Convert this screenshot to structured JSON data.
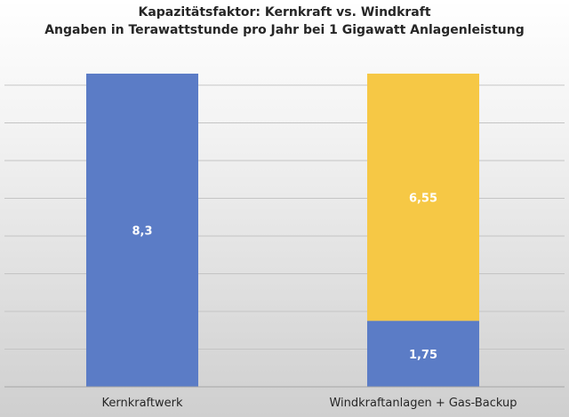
{
  "chart_data": {
    "type": "bar",
    "stacked": true,
    "title": "Kapazitätsfaktor: Kernkraft vs. Windkraft",
    "subtitle": "Angaben in Terawattstunde pro Jahr bei 1 Gigawatt Anlagenleistung",
    "categories": [
      "Kernkraftwerk",
      "Windkraftanlagen + Gas-Backup"
    ],
    "series": [
      {
        "values": [
          8.3,
          1.75
        ],
        "labels": [
          "8,3",
          "1,75"
        ],
        "color": "#5b7cc6"
      },
      {
        "values": [
          0,
          6.55
        ],
        "labels": [
          "",
          "6,55"
        ],
        "color": "#f6c845"
      }
    ],
    "ylim": [
      0,
      8.3
    ],
    "grid": true,
    "legend": "none"
  }
}
